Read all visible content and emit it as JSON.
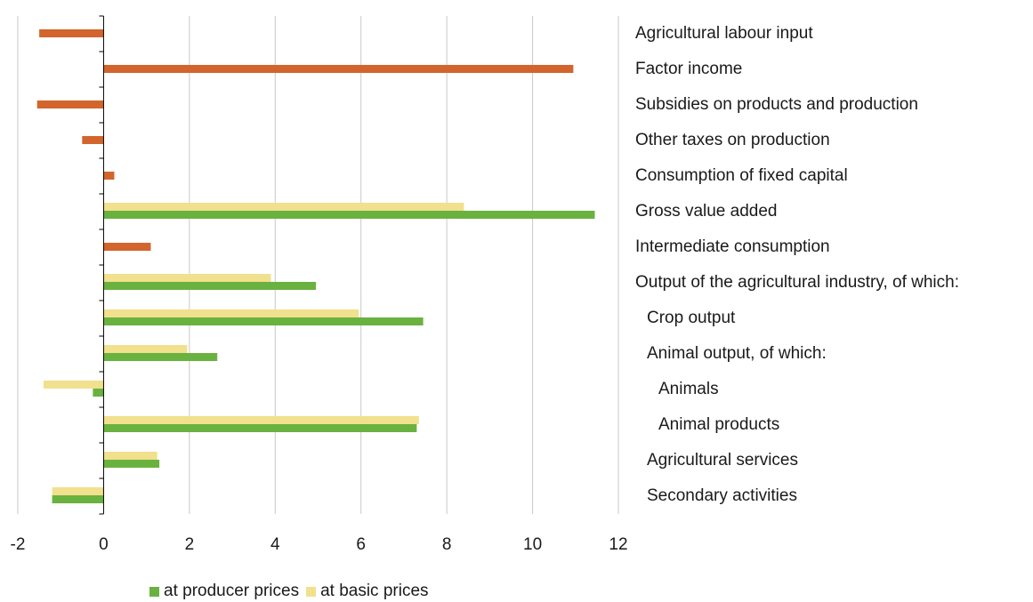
{
  "chart_data": {
    "type": "bar",
    "orientation": "horizontal",
    "categories": [
      "Agricultural labour input",
      "Factor income",
      "Subsidies on products and production",
      "Other taxes on production",
      "Consumption of fixed capital",
      "Gross value added",
      "Intermediate consumption",
      "Output of the agricultural industry, of which:",
      "Crop output",
      "Animal output, of which:",
      "Animals",
      "Animal products",
      "Agricultural services",
      "Secondary activities"
    ],
    "category_indent": [
      0,
      0,
      0,
      0,
      0,
      0,
      0,
      0,
      1,
      1,
      2,
      2,
      1,
      1
    ],
    "series": [
      {
        "name": "at producer prices",
        "color": "#6ab23f",
        "values": [
          null,
          null,
          null,
          null,
          null,
          11.45,
          null,
          4.95,
          7.45,
          2.65,
          -0.25,
          7.3,
          1.3,
          -1.2
        ]
      },
      {
        "name": "at basic prices",
        "color": "#f1e08e",
        "values": [
          null,
          null,
          null,
          null,
          null,
          8.4,
          null,
          3.9,
          5.95,
          1.95,
          -1.4,
          7.35,
          1.25,
          -1.2
        ]
      },
      {
        "name": "",
        "color": "#d2652d",
        "values": [
          -1.5,
          10.95,
          -1.55,
          -0.5,
          0.25,
          null,
          1.1,
          null,
          null,
          null,
          null,
          null,
          null,
          null
        ]
      }
    ],
    "xlim": [
      -2,
      12
    ],
    "xticks": [
      -2,
      0,
      2,
      4,
      6,
      8,
      10,
      12
    ],
    "xtick_labels": [
      "-2",
      "0",
      "2",
      "4",
      "6",
      "8",
      "10",
      "12"
    ],
    "grid": "vertical",
    "legend_position": "bottom",
    "title": "",
    "xlabel": "",
    "ylabel": ""
  }
}
